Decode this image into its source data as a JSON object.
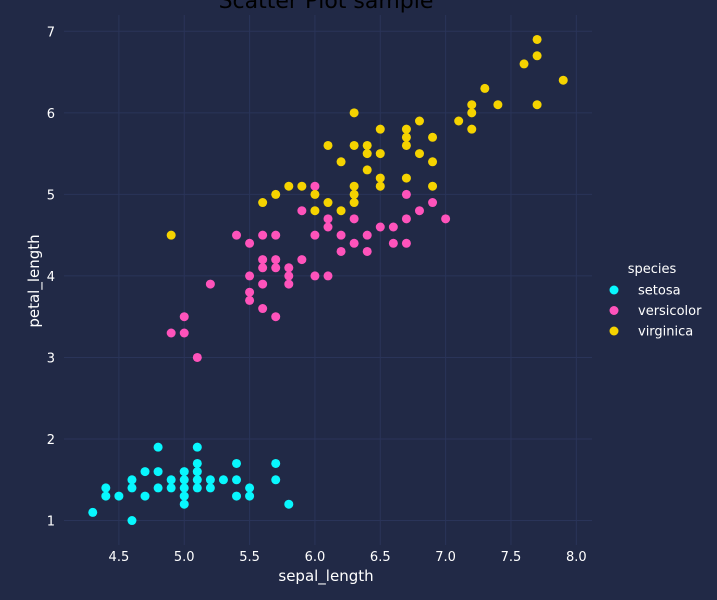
{
  "chart_data": {
    "type": "scatter",
    "title": "Scatter Plot sample",
    "xlabel": "sepal_length",
    "ylabel": "petal_length",
    "xlim": [
      4.08,
      8.12
    ],
    "ylim": [
      0.7,
      7.2
    ],
    "xticks": [
      "4.5",
      "5.0",
      "5.5",
      "6.0",
      "6.5",
      "7.0",
      "7.5",
      "8.0"
    ],
    "yticks": [
      "1",
      "2",
      "3",
      "4",
      "5",
      "6",
      "7"
    ],
    "grid": true,
    "legend": {
      "title": "species",
      "position": "right"
    },
    "series": [
      {
        "name": "setosa",
        "color": "#08F7FE",
        "points": [
          [
            4.3,
            1.1
          ],
          [
            4.4,
            1.3
          ],
          [
            4.4,
            1.4
          ],
          [
            4.5,
            1.3
          ],
          [
            4.6,
            1.0
          ],
          [
            4.6,
            1.4
          ],
          [
            4.6,
            1.5
          ],
          [
            4.7,
            1.3
          ],
          [
            4.7,
            1.6
          ],
          [
            4.8,
            1.4
          ],
          [
            4.8,
            1.6
          ],
          [
            4.8,
            1.9
          ],
          [
            4.9,
            1.4
          ],
          [
            4.9,
            1.5
          ],
          [
            5.0,
            1.2
          ],
          [
            5.0,
            1.3
          ],
          [
            5.0,
            1.4
          ],
          [
            5.0,
            1.5
          ],
          [
            5.0,
            1.6
          ],
          [
            5.1,
            1.4
          ],
          [
            5.1,
            1.5
          ],
          [
            5.1,
            1.6
          ],
          [
            5.1,
            1.7
          ],
          [
            5.1,
            1.9
          ],
          [
            5.2,
            1.4
          ],
          [
            5.2,
            1.5
          ],
          [
            5.3,
            1.5
          ],
          [
            5.4,
            1.3
          ],
          [
            5.4,
            1.5
          ],
          [
            5.4,
            1.7
          ],
          [
            5.5,
            1.3
          ],
          [
            5.5,
            1.4
          ],
          [
            5.7,
            1.5
          ],
          [
            5.7,
            1.7
          ],
          [
            5.8,
            1.2
          ]
        ]
      },
      {
        "name": "versicolor",
        "color": "#FE53BB",
        "points": [
          [
            4.9,
            3.3
          ],
          [
            5.0,
            3.3
          ],
          [
            5.0,
            3.5
          ],
          [
            5.1,
            3.0
          ],
          [
            5.2,
            3.9
          ],
          [
            5.4,
            4.5
          ],
          [
            5.5,
            3.7
          ],
          [
            5.5,
            3.8
          ],
          [
            5.5,
            4.0
          ],
          [
            5.5,
            4.4
          ],
          [
            5.6,
            3.6
          ],
          [
            5.6,
            3.9
          ],
          [
            5.6,
            4.1
          ],
          [
            5.6,
            4.2
          ],
          [
            5.6,
            4.5
          ],
          [
            5.7,
            3.5
          ],
          [
            5.7,
            4.1
          ],
          [
            5.7,
            4.2
          ],
          [
            5.7,
            4.5
          ],
          [
            5.8,
            3.9
          ],
          [
            5.8,
            4.0
          ],
          [
            5.8,
            4.1
          ],
          [
            5.9,
            4.2
          ],
          [
            5.9,
            4.8
          ],
          [
            6.0,
            4.0
          ],
          [
            6.0,
            4.5
          ],
          [
            6.0,
            5.1
          ],
          [
            6.1,
            4.0
          ],
          [
            6.1,
            4.6
          ],
          [
            6.1,
            4.7
          ],
          [
            6.2,
            4.3
          ],
          [
            6.2,
            4.5
          ],
          [
            6.3,
            4.4
          ],
          [
            6.3,
            4.7
          ],
          [
            6.4,
            4.3
          ],
          [
            6.4,
            4.5
          ],
          [
            6.5,
            4.6
          ],
          [
            6.6,
            4.4
          ],
          [
            6.6,
            4.6
          ],
          [
            6.7,
            4.4
          ],
          [
            6.7,
            4.7
          ],
          [
            6.7,
            5.0
          ],
          [
            6.8,
            4.8
          ],
          [
            6.9,
            4.9
          ],
          [
            7.0,
            4.7
          ]
        ]
      },
      {
        "name": "virginica",
        "color": "#F5D300",
        "points": [
          [
            4.9,
            4.5
          ],
          [
            5.6,
            4.9
          ],
          [
            5.7,
            5.0
          ],
          [
            5.8,
            5.1
          ],
          [
            5.9,
            5.1
          ],
          [
            6.0,
            4.8
          ],
          [
            6.0,
            5.0
          ],
          [
            6.1,
            4.9
          ],
          [
            6.1,
            5.6
          ],
          [
            6.2,
            4.8
          ],
          [
            6.2,
            5.4
          ],
          [
            6.3,
            4.9
          ],
          [
            6.3,
            5.0
          ],
          [
            6.3,
            5.1
          ],
          [
            6.3,
            5.6
          ],
          [
            6.3,
            6.0
          ],
          [
            6.4,
            5.3
          ],
          [
            6.4,
            5.5
          ],
          [
            6.4,
            5.6
          ],
          [
            6.5,
            5.1
          ],
          [
            6.5,
            5.2
          ],
          [
            6.5,
            5.5
          ],
          [
            6.5,
            5.8
          ],
          [
            6.7,
            5.2
          ],
          [
            6.7,
            5.6
          ],
          [
            6.7,
            5.7
          ],
          [
            6.7,
            5.8
          ],
          [
            6.8,
            5.5
          ],
          [
            6.8,
            5.9
          ],
          [
            6.9,
            5.1
          ],
          [
            6.9,
            5.4
          ],
          [
            6.9,
            5.7
          ],
          [
            7.1,
            5.9
          ],
          [
            7.2,
            5.8
          ],
          [
            7.2,
            6.0
          ],
          [
            7.2,
            6.1
          ],
          [
            7.3,
            6.3
          ],
          [
            7.4,
            6.1
          ],
          [
            7.6,
            6.6
          ],
          [
            7.7,
            6.1
          ],
          [
            7.7,
            6.7
          ],
          [
            7.7,
            6.9
          ],
          [
            7.9,
            6.4
          ]
        ]
      }
    ]
  }
}
